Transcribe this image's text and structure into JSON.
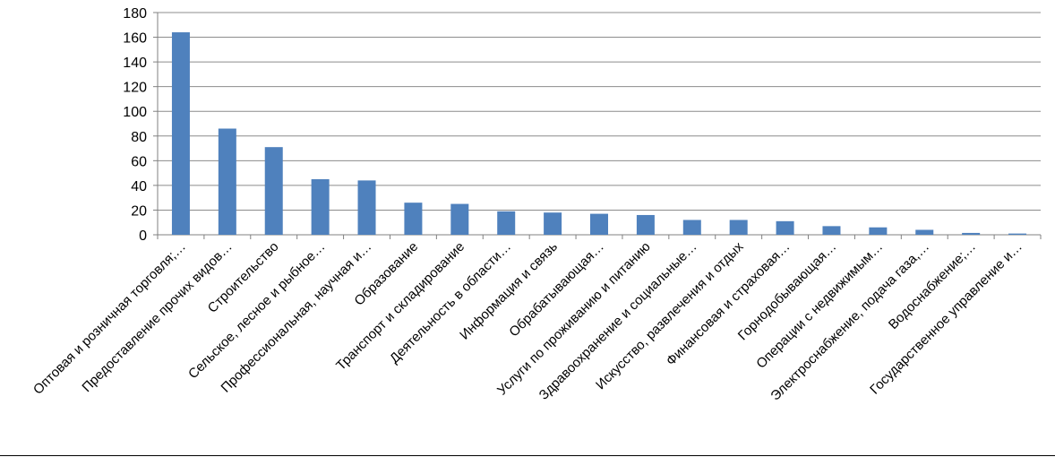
{
  "chart_data": {
    "type": "bar",
    "title": "",
    "xlabel": "",
    "ylabel": "",
    "ylim": [
      0,
      180
    ],
    "yticks": [
      0,
      20,
      40,
      60,
      80,
      100,
      120,
      140,
      160,
      180
    ],
    "grid": true,
    "legend": "none",
    "bar_color": "#4F81BD",
    "categories": [
      "Оптовая и розничная торговля;…",
      "Предоставление прочих видов…",
      "Строительство",
      "Сельское, лесное и рыбное…",
      "Профессиональная, научная и…",
      "Образование",
      "Транспорт и складирование",
      "Деятельность в области…",
      "Информация и связь",
      "Обрабатывающая…",
      "Услуги по проживанию и питанию",
      "Здравоохранение и социальные…",
      "Искусство, развлечения и отдых",
      "Финансовая и страховая…",
      "Горнодобывающая…",
      "Операции с недвижимым…",
      "Электроснабжение, подача газа,…",
      "Водоснабжение;…",
      "Государственное управление и…"
    ],
    "values": [
      164,
      86,
      71,
      45,
      44,
      26,
      25,
      19,
      18,
      17,
      16,
      12,
      12,
      11,
      7,
      6,
      4,
      1.5,
      1
    ]
  }
}
